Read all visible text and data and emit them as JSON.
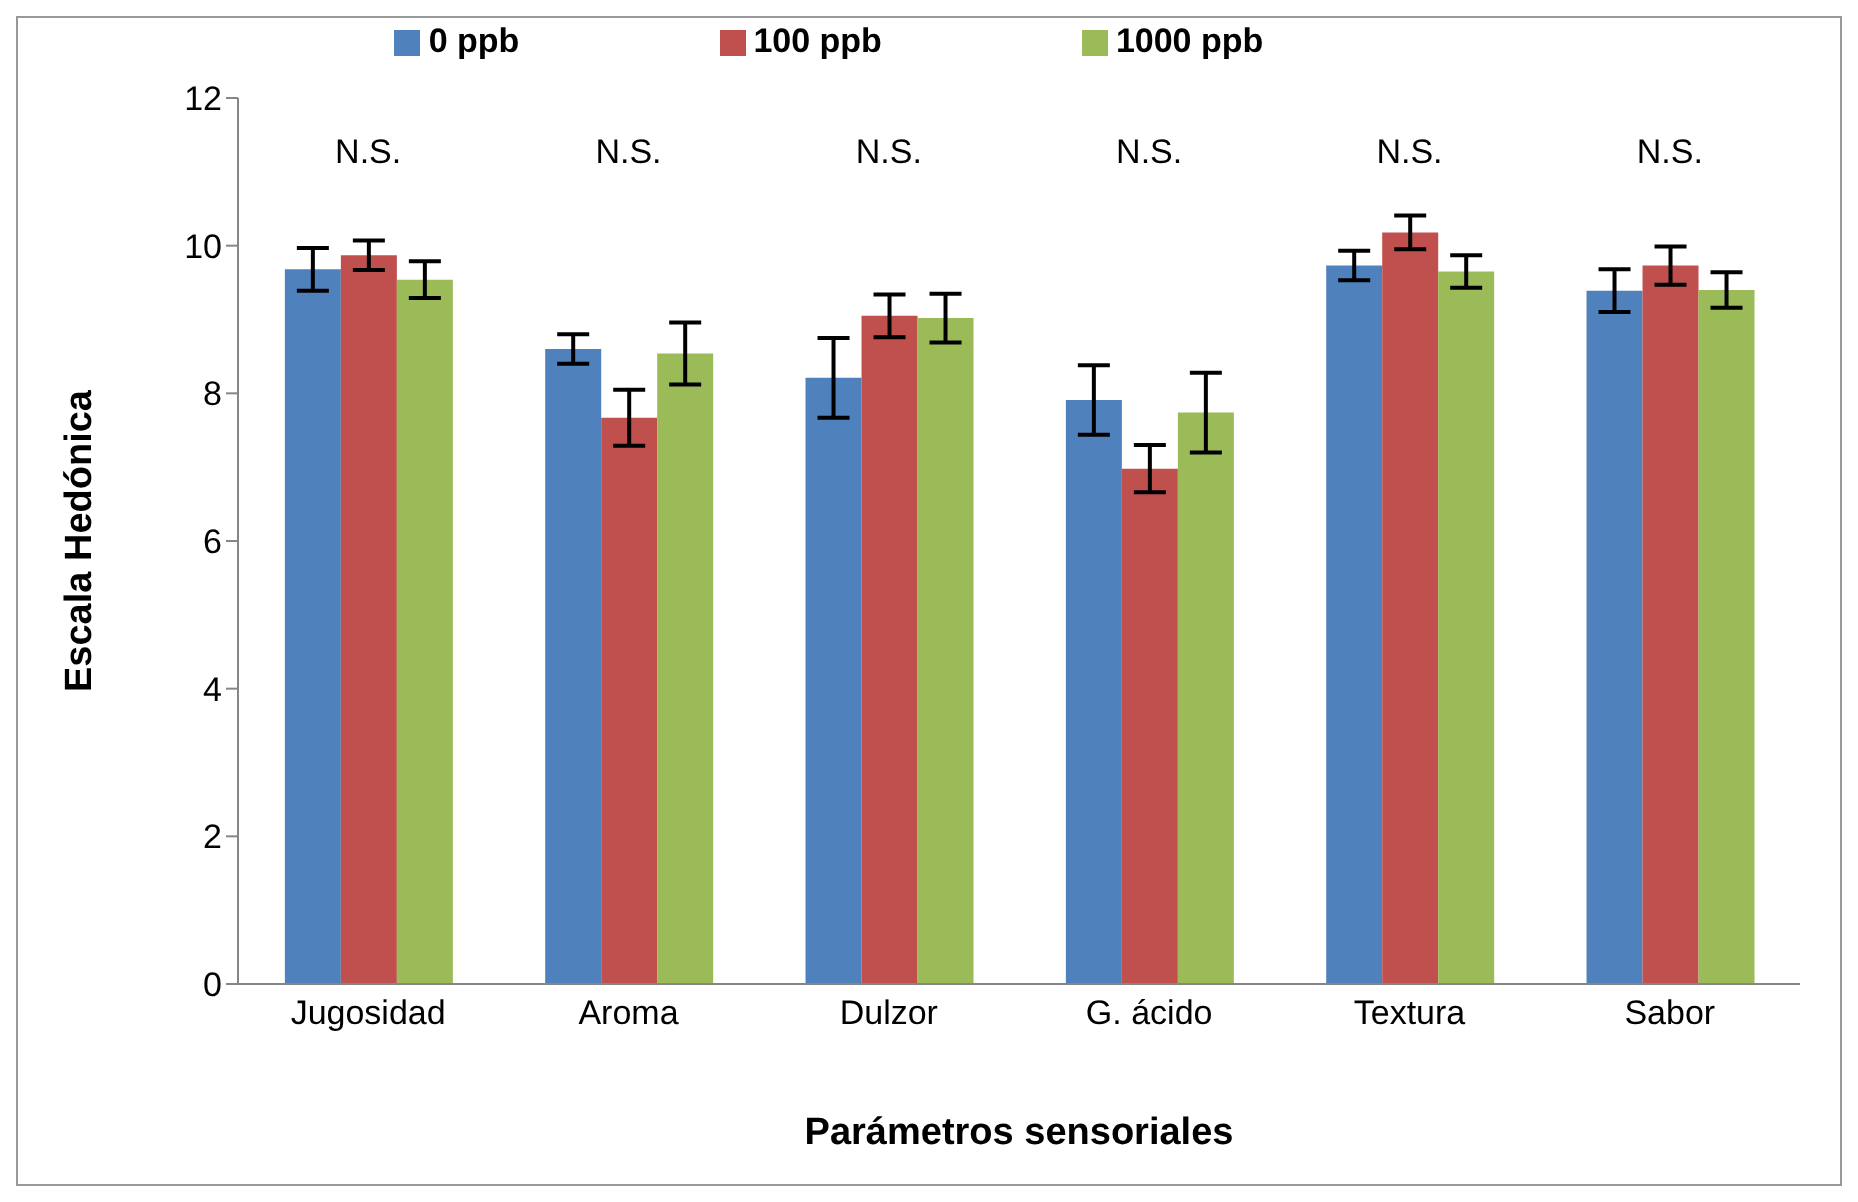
{
  "chart_data": {
    "type": "bar",
    "xlabel": "Parámetros sensoriales",
    "ylabel": "Escala Hedónica",
    "categories": [
      "Jugosidad",
      "Aroma",
      "Dulzor",
      "G. ácido",
      "Textura",
      "Sabor"
    ],
    "series": [
      {
        "name": "0 ppb",
        "color": "#4f81bd",
        "values": [
          9.68,
          8.6,
          8.21,
          7.91,
          9.73,
          9.39
        ],
        "errors": [
          0.29,
          0.2,
          0.54,
          0.47,
          0.2,
          0.29
        ]
      },
      {
        "name": "100 ppb",
        "color": "#c0504d",
        "values": [
          9.87,
          7.67,
          9.05,
          6.98,
          10.18,
          9.73
        ],
        "errors": [
          0.2,
          0.38,
          0.29,
          0.32,
          0.23,
          0.26
        ]
      },
      {
        "name": "1000 ppb",
        "color": "#9bbb59",
        "values": [
          9.54,
          8.54,
          9.02,
          7.74,
          9.65,
          9.4
        ],
        "errors": [
          0.25,
          0.42,
          0.33,
          0.54,
          0.22,
          0.24
        ]
      }
    ],
    "ylim": [
      0,
      12
    ],
    "yticks": [
      0,
      2,
      4,
      6,
      8,
      10,
      12
    ],
    "legend": "top",
    "grid": false,
    "annotations": [
      "N.S.",
      "N.S.",
      "N.S.",
      "N.S.",
      "N.S.",
      "N.S."
    ]
  }
}
